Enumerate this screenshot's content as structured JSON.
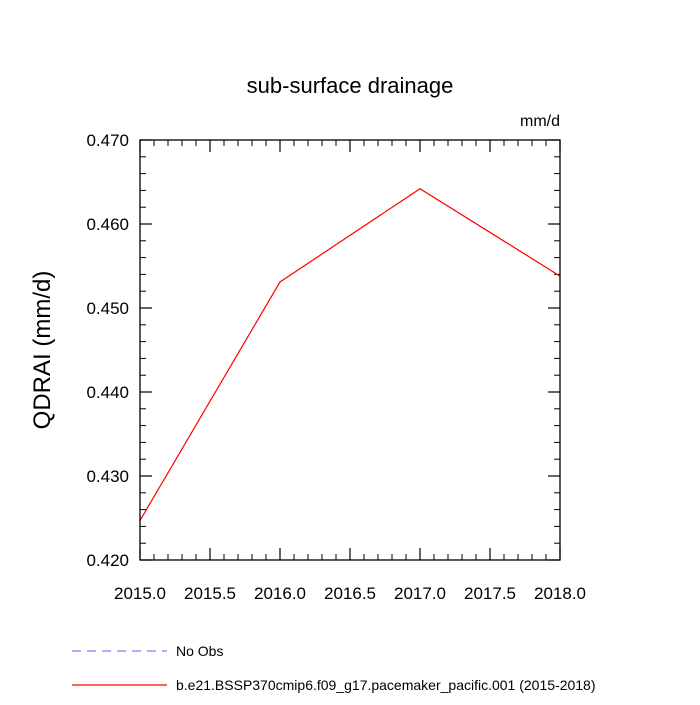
{
  "chart_data": {
    "type": "line",
    "title": "sub-surface drainage",
    "units_label": "mm/d",
    "ylabel": "QDRAI  (mm/d)",
    "xlabel": "",
    "xlim": [
      2015.0,
      2018.0
    ],
    "ylim": [
      0.42,
      0.47
    ],
    "x_ticks": [
      2015.0,
      2015.5,
      2016.0,
      2016.5,
      2017.0,
      2017.5,
      2018.0
    ],
    "x_tick_labels": [
      "2015.0",
      "2015.5",
      "2016.0",
      "2016.5",
      "2017.0",
      "2017.5",
      "2018.0"
    ],
    "y_ticks": [
      0.42,
      0.43,
      0.44,
      0.45,
      0.46,
      0.47
    ],
    "y_tick_labels": [
      "0.420",
      "0.430",
      "0.440",
      "0.450",
      "0.460",
      "0.470"
    ],
    "grid": false,
    "legend_position": "bottom",
    "series": [
      {
        "name": "b.e21.BSSP370cmip6.f09_g17.pacemaker_pacific.001 (2015-2018)",
        "color": "#ff0000",
        "dash": "solid",
        "x": [
          2015.0,
          2016.0,
          2017.0,
          2018.0
        ],
        "y": [
          0.4247,
          0.4531,
          0.4642,
          0.4538
        ]
      }
    ],
    "legend": [
      {
        "label": "No Obs",
        "color": "#8080ff",
        "dash": "dashed"
      },
      {
        "label": "b.e21.BSSP370cmip6.f09_g17.pacemaker_pacific.001 (2015-2018)",
        "color": "#ff0000",
        "dash": "solid"
      }
    ]
  }
}
